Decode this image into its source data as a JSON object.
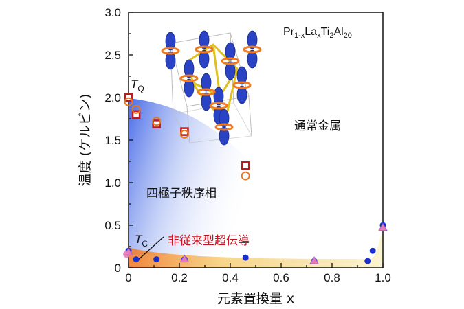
{
  "chart_data": {
    "type": "scatter",
    "title": "",
    "formula": {
      "base": "Pr",
      "sub1": "1-x",
      "mid": "La",
      "sub2": "x",
      "tail1": "Ti",
      "sub3": "2",
      "tail2": "Al",
      "sub4": "20"
    },
    "xlabel": "元素置換量 x",
    "ylabel": "温度 (ケルビン)",
    "xlim": [
      0,
      1.0
    ],
    "ylim": [
      0,
      3.0
    ],
    "xticks": [
      "0",
      "0.2",
      "0.4",
      "0.6",
      "0.8",
      "1.0"
    ],
    "yticks": [
      "0",
      "0.5",
      "1.0",
      "1.5",
      "2.0",
      "2.5",
      "3.0"
    ],
    "grid": false,
    "regions": {
      "normal_metal": "通常金属",
      "quadrupole_order": "四極子秩序相",
      "superconductivity": "非従来型超伝導"
    },
    "labels": {
      "TQ": "T",
      "TQ_sub": "Q",
      "TC": "T",
      "TC_sub": "C"
    },
    "colors": {
      "tq_square": "#c0181e",
      "tq_circle": "#e8781e",
      "tc_blue": "#1a2ecc",
      "tc_pink": "#e77ab8",
      "tc_purple": "#a060c8"
    },
    "series": [
      {
        "marker": "square",
        "x": [
          0.0,
          0.03,
          0.11,
          0.22,
          0.46
        ],
        "y": [
          2.0,
          1.8,
          1.69,
          1.6,
          1.2
        ]
      },
      {
        "marker": "circle-open",
        "x": [
          0.0,
          0.03,
          0.11,
          0.22,
          0.46
        ],
        "y": [
          1.95,
          1.86,
          1.72,
          1.57,
          1.08
        ]
      },
      {
        "marker": "circle-blue",
        "x": [
          0.0,
          0.03,
          0.11,
          0.22,
          0.46,
          0.73,
          0.94,
          0.96,
          1.0
        ],
        "y": [
          0.2,
          0.1,
          0.1,
          0.1,
          0.12,
          0.08,
          0.08,
          0.2,
          0.5
        ]
      },
      {
        "marker": "triangle-pink",
        "x": [
          0.0,
          0.22,
          0.73,
          1.0
        ],
        "y": [
          0.18,
          0.1,
          0.08,
          0.47
        ]
      },
      {
        "marker": "circle-pink",
        "x": [
          0.0
        ],
        "y": [
          0.16
        ]
      }
    ]
  }
}
